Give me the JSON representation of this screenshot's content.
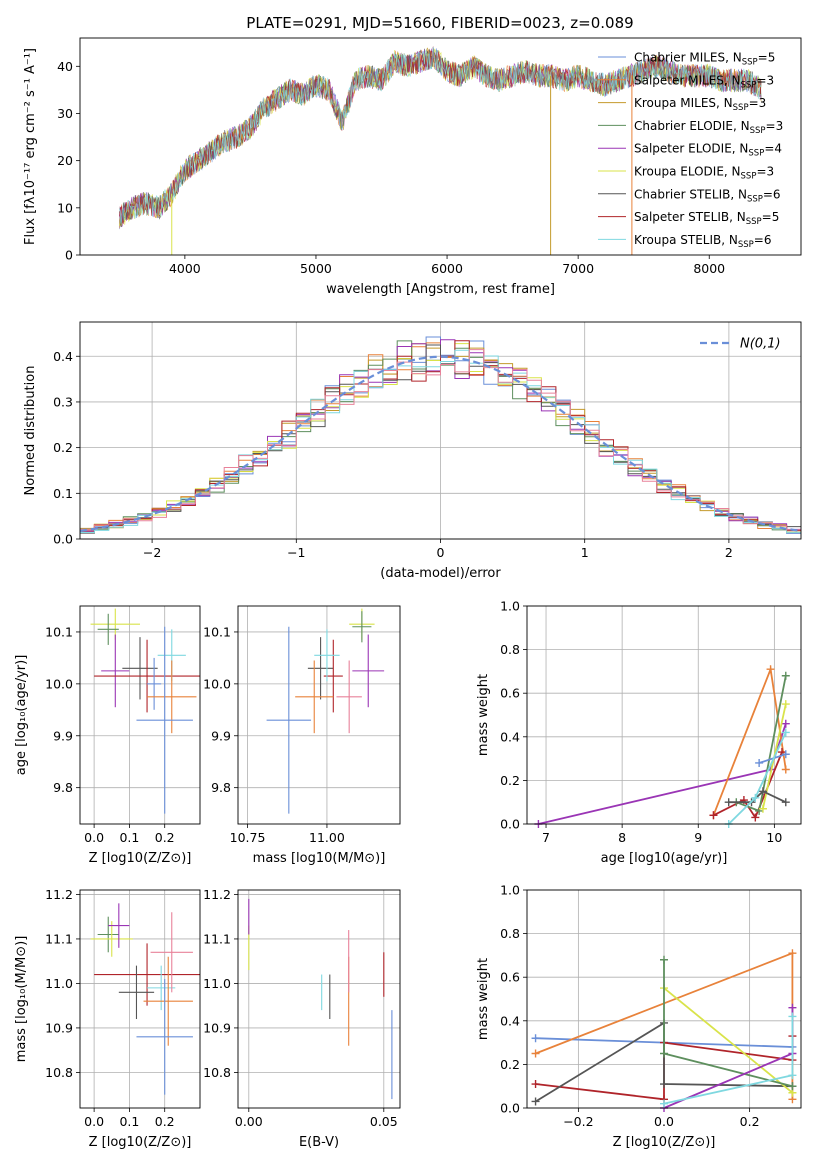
{
  "title": "PLATE=0291, MJD=51660, FIBERID=0023, z=0.089",
  "colors": {
    "Chabrier MILES": "#6a8fd8",
    "Salpeter MILES": "#e8823a",
    "Kroupa MILES": "#c49a2c",
    "Chabrier ELODIE": "#5e8f5e",
    "Salpeter ELODIE": "#9a35b5",
    "Kroupa ELODIE": "#d9e34a",
    "Chabrier STELIB": "#555555",
    "Salpeter STELIB": "#b0242a",
    "Kroupa STELIB": "#7fd8e0",
    "extra_pink": "#e8829a",
    "gaussian": "#6a8fd8"
  },
  "chart_data": [
    {
      "type": "line",
      "id": "spectrum",
      "xlabel": "wavelength [Angstrom, rest frame]",
      "ylabel": "Flux [f_λ10^{-17} erg cm^{-2} s^{-1} A^{-1}]",
      "xlim": [
        3200,
        8700
      ],
      "ylim": [
        0,
        46
      ],
      "xticks": [
        4000,
        5000,
        6000,
        7000,
        8000
      ],
      "yticks": [
        0,
        10,
        20,
        30,
        40
      ],
      "grid": false,
      "legend": "top-right",
      "legend_entries": [
        {
          "name": "Chabrier MILES",
          "nssp": "5"
        },
        {
          "name": "Salpeter MILES",
          "nssp": "3"
        },
        {
          "name": "Kroupa MILES",
          "nssp": "3"
        },
        {
          "name": "Chabrier ELODIE",
          "nssp": "3"
        },
        {
          "name": "Salpeter ELODIE",
          "nssp": "4"
        },
        {
          "name": "Kroupa ELODIE",
          "nssp": "3"
        },
        {
          "name": "Chabrier STELIB",
          "nssp": "6"
        },
        {
          "name": "Salpeter STELIB",
          "nssp": "5"
        },
        {
          "name": "Kroupa STELIB",
          "nssp": "6"
        }
      ],
      "x": [
        3500,
        3600,
        3700,
        3800,
        3900,
        4000,
        4100,
        4200,
        4300,
        4400,
        4500,
        4600,
        4700,
        4800,
        4900,
        5000,
        5100,
        5200,
        5300,
        5400,
        5500,
        5600,
        5700,
        5800,
        5900,
        6000,
        6100,
        6200,
        6300,
        6400,
        6500,
        6600,
        6700,
        6800,
        6900,
        7000,
        7100,
        7200,
        7300,
        7400,
        7500,
        7600,
        7700,
        7800,
        7900,
        8000,
        8100,
        8200,
        8300,
        8400
      ],
      "y": [
        8,
        10,
        11,
        10,
        13,
        18,
        20,
        22,
        24,
        25,
        27,
        31,
        33,
        35,
        34,
        36,
        35,
        28,
        37,
        38,
        37,
        41,
        40,
        41,
        42,
        39,
        38,
        40,
        38,
        37,
        38,
        39,
        38,
        38,
        37,
        38,
        37,
        36,
        37,
        38,
        39,
        40,
        39,
        38,
        38,
        38,
        37,
        37,
        37,
        35
      ]
    },
    {
      "type": "step-histogram",
      "id": "residuals",
      "xlabel": "(data-model)/error",
      "ylabel": "Normed distribution",
      "xlim": [
        -2.5,
        2.5
      ],
      "ylim": [
        0,
        0.475
      ],
      "xticks": [
        -2,
        -1,
        0,
        1,
        2
      ],
      "yticks": [
        0.0,
        0.1,
        0.2,
        0.3,
        0.4
      ],
      "grid": true,
      "legend": "top-right",
      "gaussian_label": "N(0,1)",
      "bin_width": 0.1
    },
    {
      "type": "errorbar",
      "id": "age_vs_Z",
      "xlabel": "Z [log10(Z/Z⊙)]",
      "ylabel": "age [log10(age/yr)]",
      "xlim": [
        -0.04,
        0.3
      ],
      "ylim": [
        9.73,
        10.15
      ],
      "xticks": [
        0.0,
        0.1,
        0.2
      ],
      "yticks": [
        9.8,
        9.9,
        10.0,
        10.1
      ],
      "points": [
        {
          "c": "Kroupa ELODIE",
          "x": 0.06,
          "y": 10.115,
          "xe": 0.07,
          "ye": 0.03
        },
        {
          "c": "Chabrier ELODIE",
          "x": 0.04,
          "y": 10.105,
          "xe": 0.03,
          "ye": 0.03
        },
        {
          "c": "Salpeter ELODIE",
          "x": 0.06,
          "y": 10.025,
          "xe": 0.04,
          "ye": 0.07
        },
        {
          "c": "Chabrier STELIB",
          "x": 0.13,
          "y": 10.03,
          "xe": 0.05,
          "ye": 0.06
        },
        {
          "c": "Salpeter STELIB",
          "x": 0.15,
          "y": 10.015,
          "xe": 0.15,
          "ye": 0.07
        },
        {
          "c": "Chabrier MILES",
          "x": 0.17,
          "y": 10.0,
          "xe": 0.02,
          "ye": 0.05
        },
        {
          "c": "Kroupa STELIB",
          "x": 0.22,
          "y": 10.055,
          "xe": 0.04,
          "ye": 0.05
        },
        {
          "c": "Salpeter MILES",
          "x": 0.22,
          "y": 9.975,
          "xe": 0.07,
          "ye": 0.07
        },
        {
          "c": "Chabrier MILES",
          "x": 0.2,
          "y": 9.93,
          "xe": 0.08,
          "ye": 0.18
        }
      ]
    },
    {
      "type": "errorbar",
      "id": "age_vs_mass",
      "xlabel": "mass [log10(M/M⊙)]",
      "ylabel": "",
      "xlim": [
        10.72,
        11.23
      ],
      "ylim": [
        9.73,
        10.15
      ],
      "xticks": [
        10.75,
        11.0
      ],
      "yticks": [
        9.8,
        9.9,
        10.0,
        10.1
      ],
      "points": [
        {
          "c": "Kroupa ELODIE",
          "x": 11.11,
          "y": 10.115,
          "xe": 0.04,
          "ye": 0.03
        },
        {
          "c": "Chabrier ELODIE",
          "x": 11.11,
          "y": 10.11,
          "xe": 0.03,
          "ye": 0.03
        },
        {
          "c": "Salpeter ELODIE",
          "x": 11.13,
          "y": 10.025,
          "xe": 0.05,
          "ye": 0.07
        },
        {
          "c": "Chabrier STELIB",
          "x": 10.98,
          "y": 10.03,
          "xe": 0.04,
          "ye": 0.06
        },
        {
          "c": "Salpeter STELIB",
          "x": 11.02,
          "y": 10.015,
          "xe": 0.03,
          "ye": 0.07
        },
        {
          "c": "Kroupa STELIB",
          "x": 11.0,
          "y": 10.055,
          "xe": 0.04,
          "ye": 0.05
        },
        {
          "c": "Salpeter MILES",
          "x": 10.96,
          "y": 9.975,
          "xe": 0.06,
          "ye": 0.07
        },
        {
          "c": "extra_pink",
          "x": 11.07,
          "y": 9.975,
          "xe": 0.04,
          "ye": 0.07
        },
        {
          "c": "Chabrier MILES",
          "x": 10.88,
          "y": 9.93,
          "xe": 0.07,
          "ye": 0.18
        }
      ]
    },
    {
      "type": "line",
      "id": "mass_weight_vs_age",
      "xlabel": "age [log10(age/yr)]",
      "ylabel": "mass weight",
      "xlim": [
        6.75,
        10.35
      ],
      "ylim": [
        0,
        1.0
      ],
      "xticks": [
        7,
        8,
        9,
        10
      ],
      "yticks": [
        0.0,
        0.2,
        0.4,
        0.6,
        0.8,
        1.0
      ],
      "grid": true,
      "series": [
        {
          "c": "Salpeter ELODIE",
          "x": [
            6.9,
            9.95,
            10.15
          ],
          "y": [
            0.0,
            0.25,
            0.46
          ]
        },
        {
          "c": "Salpeter MILES",
          "x": [
            9.2,
            9.95,
            10.15
          ],
          "y": [
            0.04,
            0.71,
            0.25
          ]
        },
        {
          "c": "Salpeter STELIB",
          "x": [
            9.2,
            9.6,
            9.75,
            10.1
          ],
          "y": [
            0.04,
            0.11,
            0.03,
            0.33
          ]
        },
        {
          "c": "Chabrier ELODIE",
          "x": [
            9.5,
            9.8,
            10.15
          ],
          "y": [
            0.1,
            0.06,
            0.68
          ]
        },
        {
          "c": "Kroupa ELODIE",
          "x": [
            9.85,
            10.15
          ],
          "y": [
            0.07,
            0.55
          ]
        },
        {
          "c": "Chabrier STELIB",
          "x": [
            9.4,
            9.7,
            9.85,
            10.15
          ],
          "y": [
            0.1,
            0.1,
            0.15,
            0.1
          ]
        },
        {
          "c": "Chabrier MILES",
          "x": [
            9.8,
            10.15
          ],
          "y": [
            0.28,
            0.32
          ]
        },
        {
          "c": "Kroupa STELIB",
          "x": [
            9.4,
            9.75,
            10.15
          ],
          "y": [
            0.0,
            0.12,
            0.42
          ]
        }
      ]
    },
    {
      "type": "errorbar",
      "id": "mass_vs_Z",
      "xlabel": "Z [log10(Z/Z⊙)]",
      "ylabel": "mass [log10(M/M⊙)]",
      "xlim": [
        -0.04,
        0.3
      ],
      "ylim": [
        10.72,
        11.21
      ],
      "xticks": [
        0.0,
        0.1,
        0.2
      ],
      "yticks": [
        10.8,
        10.9,
        11.0,
        11.1,
        11.2
      ],
      "points": [
        {
          "c": "Chabrier ELODIE",
          "x": 0.04,
          "y": 11.11,
          "xe": 0.03,
          "ye": 0.04
        },
        {
          "c": "Kroupa ELODIE",
          "x": 0.05,
          "y": 11.1,
          "xe": 0.06,
          "ye": 0.04
        },
        {
          "c": "Salpeter ELODIE",
          "x": 0.07,
          "y": 11.13,
          "xe": 0.03,
          "ye": 0.05
        },
        {
          "c": "Salpeter STELIB",
          "x": 0.15,
          "y": 11.02,
          "xe": 0.15,
          "ye": 0.07
        },
        {
          "c": "Chabrier STELIB",
          "x": 0.12,
          "y": 10.98,
          "xe": 0.05,
          "ye": 0.06
        },
        {
          "c": "Kroupa STELIB",
          "x": 0.19,
          "y": 10.99,
          "xe": 0.04,
          "ye": 0.05
        },
        {
          "c": "extra_pink",
          "x": 0.22,
          "y": 11.07,
          "xe": 0.06,
          "ye": 0.09
        },
        {
          "c": "Salpeter MILES",
          "x": 0.21,
          "y": 10.96,
          "xe": 0.07,
          "ye": 0.1
        },
        {
          "c": "Chabrier MILES",
          "x": 0.2,
          "y": 10.88,
          "xe": 0.08,
          "ye": 0.13
        }
      ]
    },
    {
      "type": "errorbar",
      "id": "mass_vs_EBV",
      "xlabel": "E(B-V)",
      "ylabel": "",
      "xlim": [
        -0.004,
        0.056
      ],
      "ylim": [
        10.72,
        11.21
      ],
      "xticks": [
        0.0,
        0.05
      ],
      "yticks": [
        10.8,
        10.9,
        11.0,
        11.1,
        11.2
      ],
      "points": [
        {
          "c": "Kroupa ELODIE",
          "x": 0.0,
          "y": 11.08,
          "xe": 0,
          "ye": 0.05
        },
        {
          "c": "Salpeter ELODIE",
          "x": 0.0,
          "y": 11.15,
          "xe": 0,
          "ye": 0.04
        },
        {
          "c": "Kroupa STELIB",
          "x": 0.027,
          "y": 10.98,
          "xe": 0,
          "ye": 0.04
        },
        {
          "c": "Chabrier STELIB",
          "x": 0.03,
          "y": 10.97,
          "xe": 0,
          "ye": 0.05
        },
        {
          "c": "Salpeter MILES",
          "x": 0.037,
          "y": 10.96,
          "xe": 0,
          "ye": 0.1
        },
        {
          "c": "extra_pink",
          "x": 0.037,
          "y": 11.05,
          "xe": 0,
          "ye": 0.07
        },
        {
          "c": "Salpeter STELIB",
          "x": 0.05,
          "y": 11.02,
          "xe": 0,
          "ye": 0.05
        },
        {
          "c": "Chabrier MILES",
          "x": 0.053,
          "y": 10.84,
          "xe": 0,
          "ye": 0.1
        }
      ]
    },
    {
      "type": "line",
      "id": "mass_weight_vs_Z",
      "xlabel": "Z [log10(Z/Z⊙)]",
      "ylabel": "mass weight",
      "xlim": [
        -0.32,
        0.32
      ],
      "ylim": [
        0,
        1.0
      ],
      "xticks": [
        -0.2,
        0.0,
        0.2
      ],
      "yticks": [
        0.0,
        0.2,
        0.4,
        0.6,
        0.8,
        1.0
      ],
      "grid": true,
      "series": [
        {
          "c": "Chabrier MILES",
          "x": [
            -0.3,
            0.3
          ],
          "y": [
            0.32,
            0.28
          ]
        },
        {
          "c": "Salpeter MILES",
          "x": [
            -0.3,
            0.3,
            0.3
          ],
          "y": [
            0.25,
            0.71,
            0.04
          ]
        },
        {
          "c": "Salpeter STELIB",
          "x": [
            -0.3,
            0.0,
            0.0,
            0.3,
            0.3
          ],
          "y": [
            0.11,
            0.04,
            0.3,
            0.22,
            0.33
          ]
        },
        {
          "c": "Chabrier STELIB",
          "x": [
            -0.3,
            0.0,
            0.0,
            0.3
          ],
          "y": [
            0.03,
            0.39,
            0.11,
            0.1
          ]
        },
        {
          "c": "Kroupa ELODIE",
          "x": [
            0.0,
            0.3
          ],
          "y": [
            0.55,
            0.07
          ]
        },
        {
          "c": "Chabrier ELODIE",
          "x": [
            0.0,
            0.0,
            0.3
          ],
          "y": [
            0.68,
            0.25,
            0.1
          ]
        },
        {
          "c": "Salpeter ELODIE",
          "x": [
            0.0,
            0.3,
            0.3
          ],
          "y": [
            0.0,
            0.25,
            0.46
          ]
        },
        {
          "c": "Kroupa STELIB",
          "x": [
            0.0,
            0.3,
            0.3
          ],
          "y": [
            0.02,
            0.15,
            0.42
          ]
        }
      ]
    }
  ]
}
